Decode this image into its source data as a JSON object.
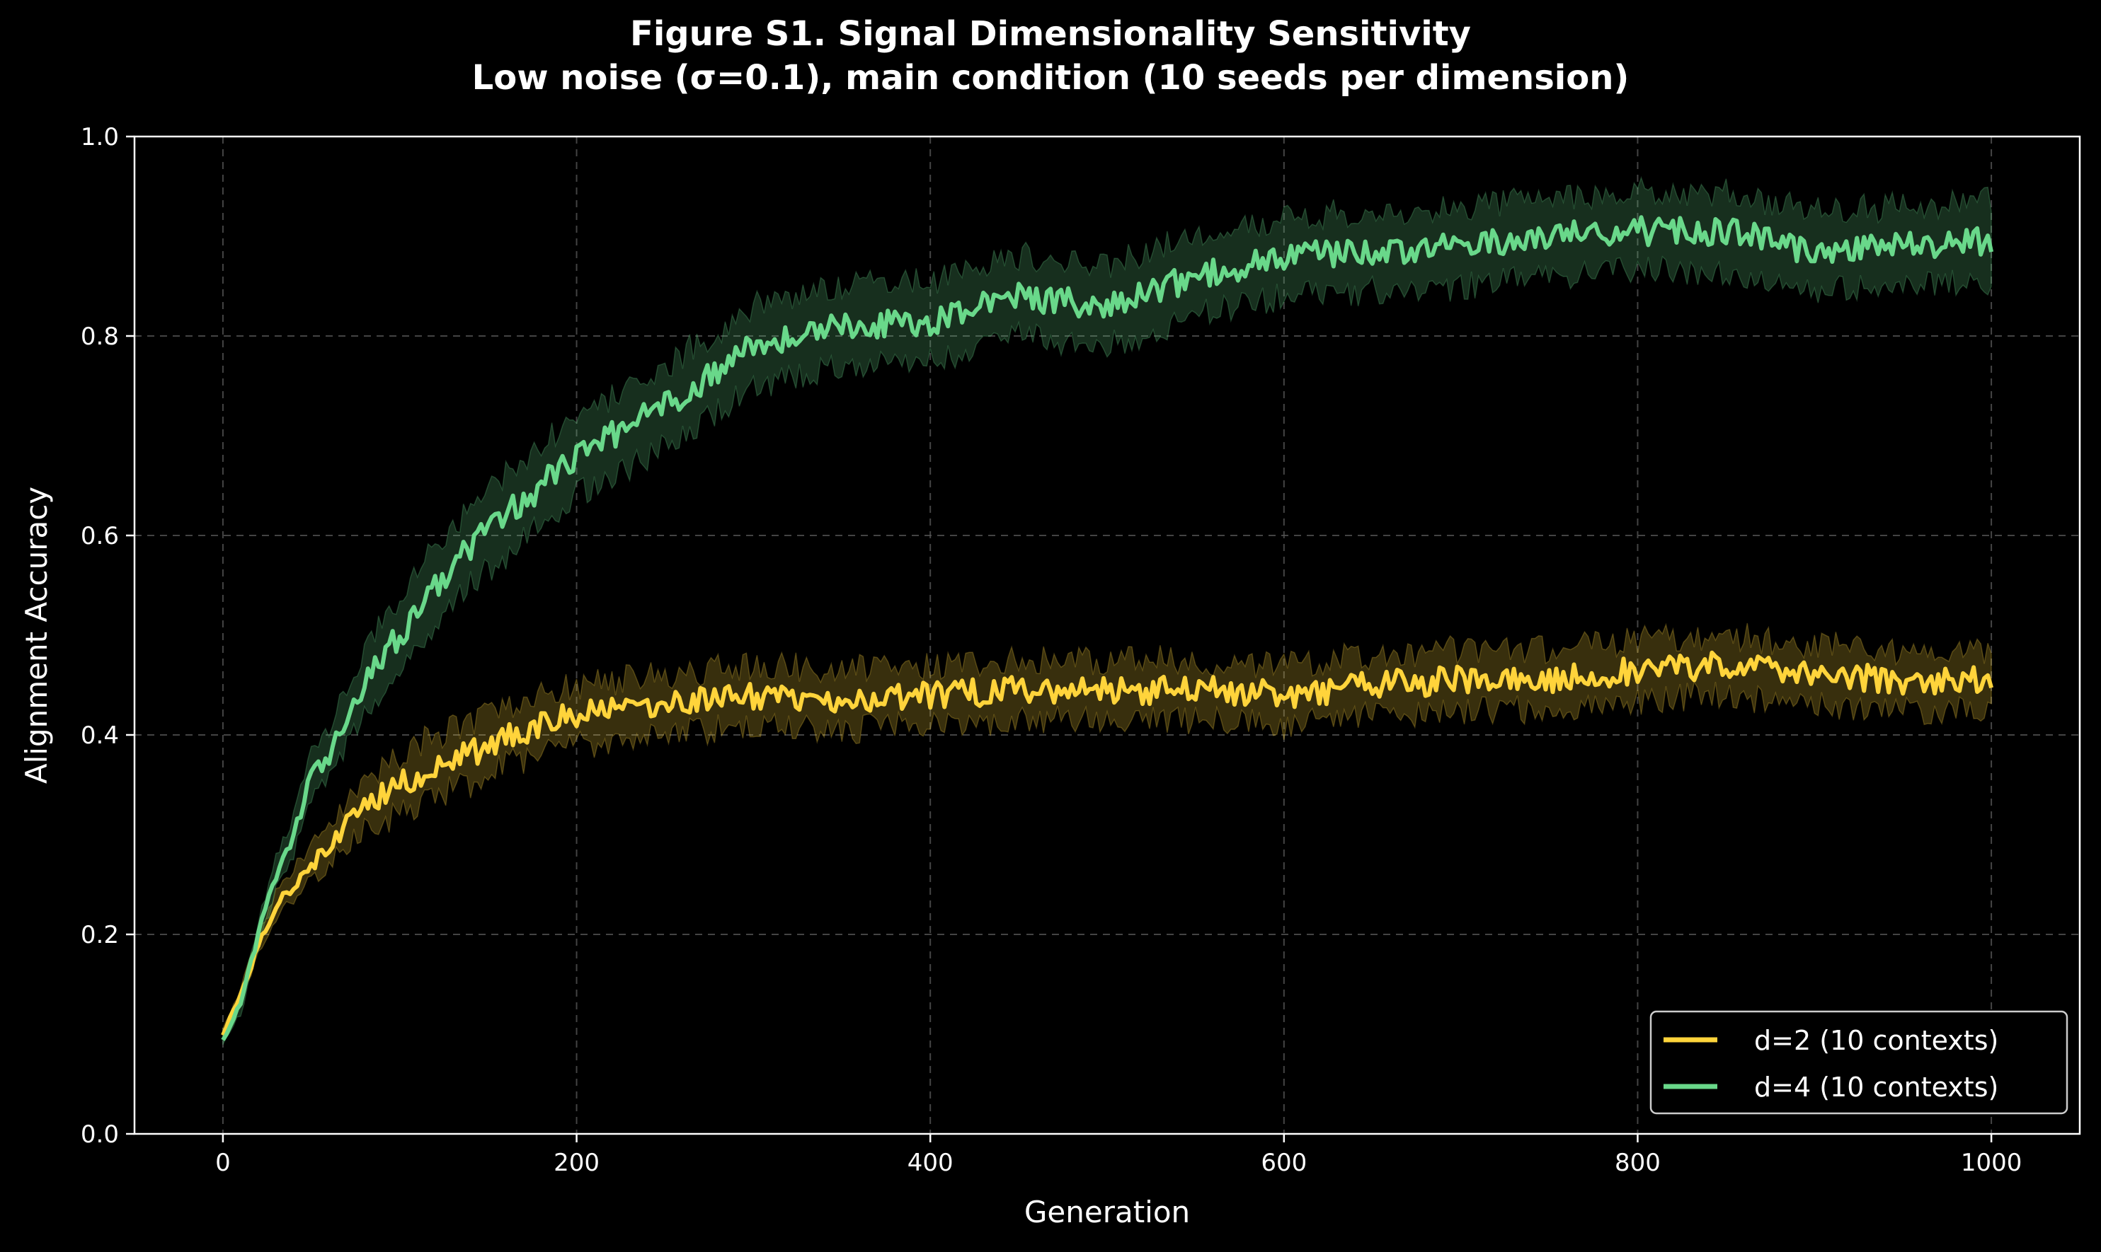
{
  "chart_data": {
    "type": "line",
    "title": "Figure S1. Signal Dimensionality Sensitivity",
    "subtitle": "Low noise (σ=0.1), main condition (10 seeds per dimension)",
    "xlabel": "Generation",
    "ylabel": "Alignment Accuracy",
    "xlim": [
      -50,
      1050
    ],
    "ylim": [
      0.0,
      1.0
    ],
    "xticks": [
      0,
      200,
      400,
      600,
      800,
      1000
    ],
    "xtick_labels": [
      "0",
      "200",
      "400",
      "600",
      "800",
      "1000"
    ],
    "yticks": [
      0.0,
      0.2,
      0.4,
      0.6,
      0.8,
      1.0
    ],
    "ytick_labels": [
      "0.0",
      "0.2",
      "0.4",
      "0.6",
      "0.8",
      "1.0"
    ],
    "grid": true,
    "legend_position": "lower-right",
    "shaded_band": "spread across seeds",
    "series": [
      {
        "name": "d=2 (10 contexts)",
        "color": "#ffd43b",
        "x": [
          0,
          10,
          20,
          30,
          40,
          50,
          60,
          70,
          80,
          90,
          100,
          120,
          140,
          160,
          180,
          200,
          250,
          300,
          350,
          400,
          450,
          500,
          550,
          600,
          650,
          700,
          750,
          800,
          850,
          900,
          950,
          1000
        ],
        "y": [
          0.1,
          0.14,
          0.19,
          0.23,
          0.25,
          0.27,
          0.29,
          0.31,
          0.33,
          0.34,
          0.35,
          0.37,
          0.38,
          0.4,
          0.41,
          0.42,
          0.43,
          0.44,
          0.435,
          0.44,
          0.445,
          0.445,
          0.445,
          0.44,
          0.45,
          0.455,
          0.455,
          0.465,
          0.47,
          0.46,
          0.455,
          0.455
        ],
        "band_halfwidth": 0.03
      },
      {
        "name": "d=4 (10 contexts)",
        "color": "#69d88a",
        "x": [
          0,
          10,
          20,
          30,
          40,
          50,
          60,
          70,
          80,
          90,
          100,
          120,
          140,
          160,
          180,
          200,
          250,
          300,
          350,
          400,
          450,
          500,
          550,
          600,
          650,
          700,
          750,
          800,
          850,
          900,
          950,
          1000
        ],
        "y": [
          0.095,
          0.13,
          0.2,
          0.26,
          0.3,
          0.36,
          0.38,
          0.42,
          0.45,
          0.48,
          0.5,
          0.55,
          0.59,
          0.62,
          0.65,
          0.68,
          0.73,
          0.79,
          0.81,
          0.815,
          0.84,
          0.83,
          0.86,
          0.88,
          0.885,
          0.89,
          0.9,
          0.905,
          0.905,
          0.885,
          0.89,
          0.895
        ],
        "band_halfwidth": 0.04
      }
    ]
  }
}
